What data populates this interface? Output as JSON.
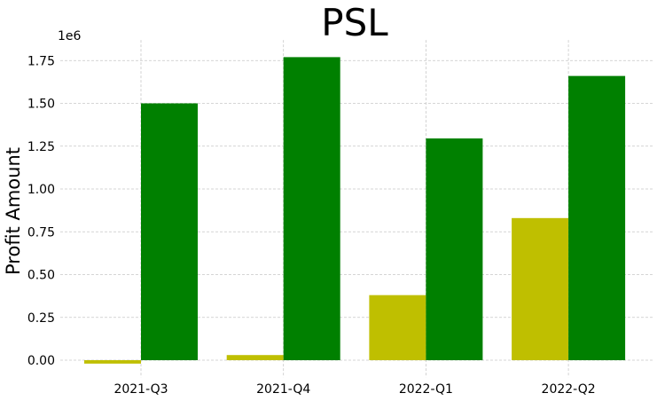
{
  "chart_data": {
    "type": "bar",
    "title": "PSL",
    "xlabel": "",
    "ylabel": "Profit Amount",
    "offset_label": "1e6",
    "categories": [
      "2021-Q3",
      "2021-Q4",
      "2022-Q1",
      "2022-Q2"
    ],
    "series": [
      {
        "color": "#bfbf00",
        "values": [
          -0.02,
          0.03,
          0.38,
          0.83
        ]
      },
      {
        "color": "#008000",
        "values": [
          1.5,
          1.77,
          1.295,
          1.66
        ]
      }
    ],
    "ylim": [
      -0.1,
      1.87
    ],
    "yticks": [
      0,
      0.25,
      0.5,
      0.75,
      1.0,
      1.25,
      1.5,
      1.75
    ],
    "ytick_labels": [
      "0.00",
      "0.25",
      "0.50",
      "0.75",
      "1.00",
      "1.25",
      "1.50",
      "1.75"
    ],
    "grid": true,
    "legend": "none"
  }
}
